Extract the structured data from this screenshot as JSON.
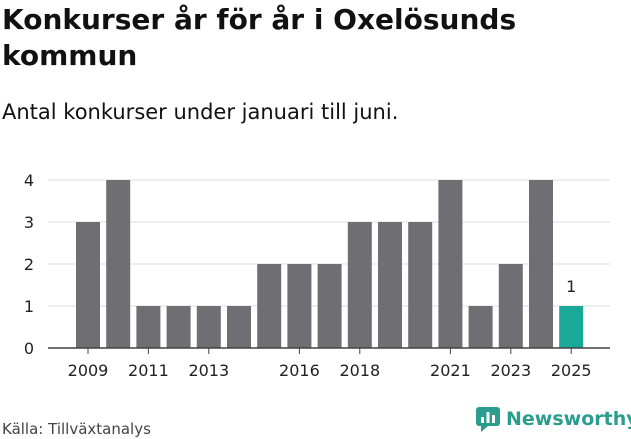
{
  "title": "Konkurser år för år i Oxelösunds kommun",
  "subtitle": "Antal konkurser under januari till juni.",
  "source": "Källa: Tillväxtanalys",
  "brand": {
    "name": "Newsworthy",
    "icon": "newsworthy-logo-icon",
    "color": "#2a9d8f"
  },
  "chart_data": {
    "type": "bar",
    "categories": [
      "2009",
      "2010",
      "2011",
      "2012",
      "2013",
      "2014",
      "2015",
      "2016",
      "2017",
      "2018",
      "2019",
      "2020",
      "2021",
      "2022",
      "2023",
      "2024",
      "2025"
    ],
    "x_tick_labels": [
      "2009",
      "2011",
      "2013",
      "2016",
      "2018",
      "2021",
      "2023",
      "2025"
    ],
    "values": [
      3,
      4,
      1,
      1,
      1,
      1,
      2,
      2,
      2,
      3,
      3,
      3,
      4,
      1,
      2,
      4,
      1
    ],
    "y_ticks": [
      0,
      1,
      2,
      3,
      4
    ],
    "ylim": [
      0,
      4
    ],
    "grid": true,
    "highlight": {
      "category": "2025",
      "label": "1"
    },
    "colors": {
      "bar": "#6f6e73",
      "highlight": "#1aa898",
      "grid": "#dddddd",
      "axis": "#444444"
    }
  }
}
